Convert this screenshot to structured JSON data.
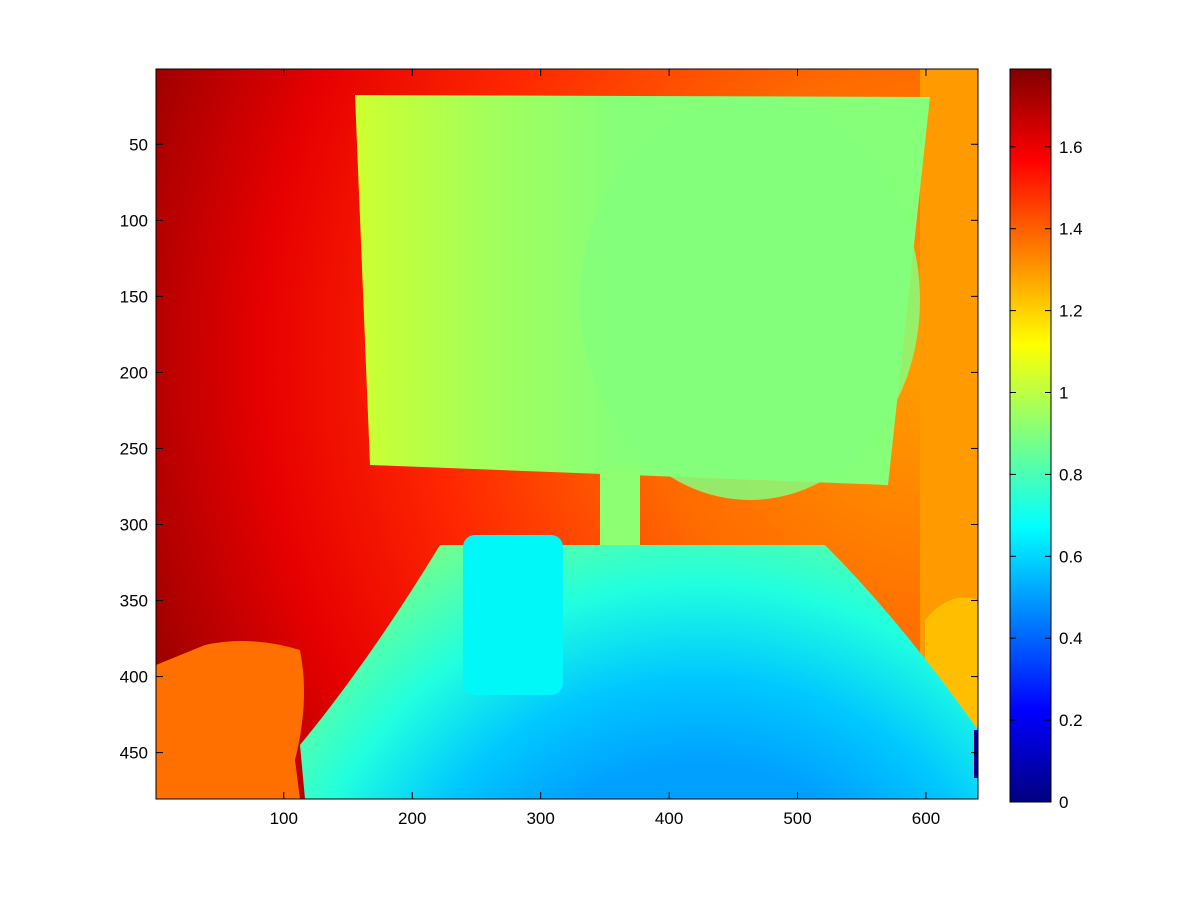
{
  "chart_data": {
    "type": "heatmap",
    "title": "",
    "xlabel": "",
    "ylabel": "",
    "image_size": [
      640,
      480
    ],
    "xlim": [
      0.5,
      640.5
    ],
    "ylim": [
      480.5,
      0.5
    ],
    "y_reversed": true,
    "x_ticks": [
      100,
      200,
      300,
      400,
      500,
      600
    ],
    "y_ticks": [
      50,
      100,
      150,
      200,
      250,
      300,
      350,
      400,
      450
    ],
    "x_tick_labels": [
      "100",
      "200",
      "300",
      "400",
      "500",
      "600"
    ],
    "y_tick_labels": [
      "50",
      "100",
      "150",
      "200",
      "250",
      "300",
      "350",
      "400",
      "450"
    ],
    "colormap": "jet",
    "colorbar": {
      "location": "right",
      "range": [
        0,
        1.79
      ],
      "ticks": [
        0,
        0.2,
        0.4,
        0.6,
        0.8,
        1,
        1.2,
        1.4,
        1.6
      ],
      "tick_labels": [
        "0",
        "0.2",
        "0.4",
        "0.6",
        "0.8",
        "1",
        "1.2",
        "1.4",
        "1.6"
      ]
    },
    "regions": [
      {
        "name": "background wall",
        "approx_value": 1.5,
        "range": [
          1.25,
          1.78
        ]
      },
      {
        "name": "monitor screen",
        "approx_value": 0.95,
        "range": [
          0.9,
          1.05
        ]
      },
      {
        "name": "monitor stand",
        "approx_value": 0.85
      },
      {
        "name": "cup",
        "approx_value": 0.72
      },
      {
        "name": "desk surface",
        "approx_value": 0.7,
        "range": [
          0.55,
          0.85
        ]
      },
      {
        "name": "right background",
        "approx_value": 1.3,
        "range": [
          1.2,
          1.35
        ]
      },
      {
        "name": "lower-left object",
        "approx_value": 1.35
      },
      {
        "name": "invalid pixels",
        "approx_value": 0
      }
    ]
  }
}
